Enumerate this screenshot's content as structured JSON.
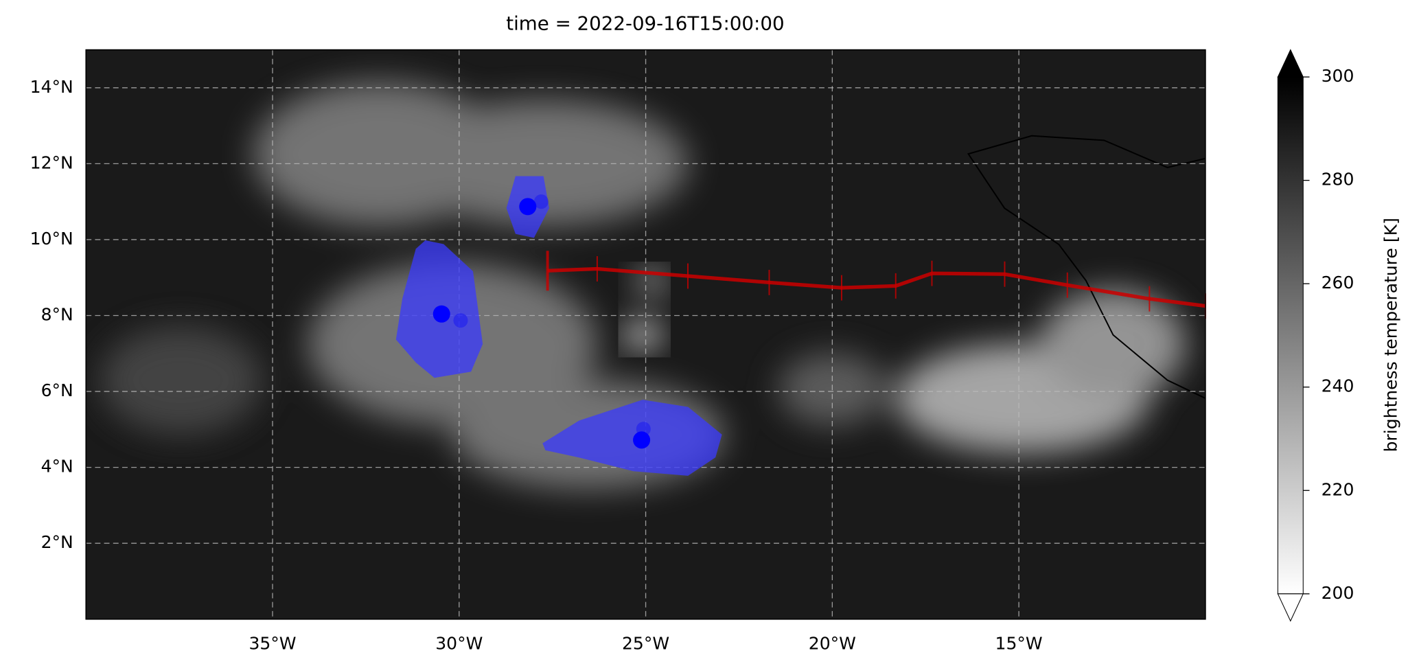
{
  "chart_data": {
    "type": "map",
    "title": "time = 2022-09-16T15:00:00",
    "xlim": [
      -40,
      -10
    ],
    "ylim": [
      0,
      15
    ],
    "xticks": [
      {
        "value": -35,
        "label": "35°W"
      },
      {
        "value": -30,
        "label": "30°W"
      },
      {
        "value": -25,
        "label": "25°W"
      },
      {
        "value": -20,
        "label": "20°W"
      },
      {
        "value": -15,
        "label": "15°W"
      }
    ],
    "yticks": [
      {
        "value": 2,
        "label": "2°N"
      },
      {
        "value": 4,
        "label": "4°N"
      },
      {
        "value": 6,
        "label": "6°N"
      },
      {
        "value": 8,
        "label": "8°N"
      },
      {
        "value": 10,
        "label": "10°N"
      },
      {
        "value": 12,
        "label": "12°N"
      },
      {
        "value": 14,
        "label": "14°N"
      }
    ],
    "grid": true,
    "areas": {
      "color": "#3a3aff",
      "shapes": [
        {
          "lon": [
            -28.48,
            -27.75,
            -27.6,
            -28.0,
            -28.48,
            -28.72
          ],
          "lat": [
            11.66,
            11.66,
            10.83,
            10.06,
            10.16,
            10.83
          ]
        },
        {
          "lon": [
            -30.9,
            -30.42,
            -29.64,
            -29.38,
            -29.69,
            -30.66,
            -31.15,
            -31.68,
            -31.51,
            -31.15
          ],
          "lat": [
            9.97,
            9.87,
            9.16,
            7.25,
            6.53,
            6.37,
            6.77,
            7.37,
            8.44,
            9.75
          ]
        },
        {
          "lon": [
            -27.75,
            -26.78,
            -25.08,
            -23.87,
            -22.97,
            -23.14,
            -23.87,
            -25.33,
            -26.78,
            -27.68
          ],
          "lat": [
            4.63,
            5.22,
            5.77,
            5.58,
            4.86,
            4.27,
            3.79,
            3.91,
            4.27,
            4.46
          ]
        }
      ]
    },
    "points": {
      "color": "#0000ff",
      "lon": [
        -28.16,
        -27.8,
        -30.47,
        -29.96,
        -25.11,
        -25.06
      ],
      "lat": [
        10.87,
        11.0,
        8.04,
        7.87,
        4.72,
        5.01
      ]
    },
    "track": {
      "color": "#cc0000",
      "lon": [
        -27.63,
        -26.3,
        -23.87,
        -21.69,
        -19.75,
        -18.3,
        -17.33,
        -15.38,
        -13.7,
        -11.5,
        -10.0
      ],
      "lat": [
        9.18,
        9.23,
        9.04,
        8.87,
        8.73,
        8.78,
        9.11,
        9.09,
        8.8,
        8.44,
        8.25
      ]
    },
    "colorbar": {
      "label": "brightness temperature [K]",
      "lim": [
        200,
        300
      ],
      "ticks": [
        200,
        220,
        240,
        260,
        280,
        300
      ]
    }
  }
}
